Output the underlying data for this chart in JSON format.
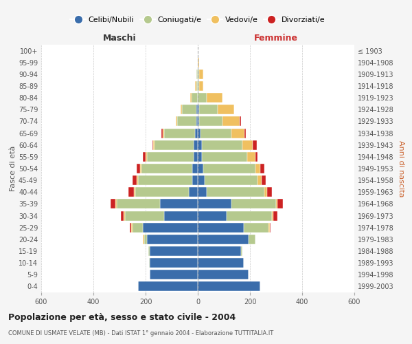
{
  "age_groups": [
    "0-4",
    "5-9",
    "10-14",
    "15-19",
    "20-24",
    "25-29",
    "30-34",
    "35-39",
    "40-44",
    "45-49",
    "50-54",
    "55-59",
    "60-64",
    "65-69",
    "70-74",
    "75-79",
    "80-84",
    "85-89",
    "90-94",
    "95-99",
    "100+"
  ],
  "birth_years": [
    "1999-2003",
    "1994-1998",
    "1989-1993",
    "1984-1988",
    "1979-1983",
    "1974-1978",
    "1969-1973",
    "1964-1968",
    "1959-1963",
    "1954-1958",
    "1949-1953",
    "1944-1948",
    "1939-1943",
    "1934-1938",
    "1929-1933",
    "1924-1928",
    "1919-1923",
    "1914-1918",
    "1909-1913",
    "1904-1908",
    "≤ 1903"
  ],
  "males": {
    "celibi": [
      230,
      185,
      185,
      185,
      195,
      210,
      130,
      145,
      35,
      20,
      20,
      15,
      15,
      10,
      5,
      5,
      0,
      0,
      0,
      0,
      0
    ],
    "coniugati": [
      0,
      0,
      2,
      5,
      10,
      40,
      150,
      165,
      205,
      210,
      195,
      180,
      150,
      120,
      75,
      55,
      25,
      5,
      5,
      0,
      0
    ],
    "vedovi": [
      0,
      0,
      0,
      0,
      5,
      5,
      5,
      5,
      5,
      5,
      5,
      5,
      5,
      5,
      5,
      5,
      5,
      5,
      0,
      0,
      0
    ],
    "divorziati": [
      0,
      0,
      0,
      0,
      0,
      5,
      10,
      20,
      20,
      15,
      15,
      10,
      5,
      5,
      0,
      0,
      0,
      0,
      0,
      0,
      0
    ]
  },
  "females": {
    "nubili": [
      240,
      195,
      175,
      165,
      195,
      175,
      110,
      130,
      35,
      25,
      20,
      15,
      15,
      10,
      5,
      5,
      0,
      0,
      0,
      0,
      0
    ],
    "coniugate": [
      0,
      0,
      2,
      5,
      25,
      95,
      175,
      170,
      220,
      205,
      200,
      175,
      155,
      120,
      90,
      70,
      35,
      5,
      5,
      0,
      0
    ],
    "vedove": [
      0,
      0,
      0,
      0,
      0,
      5,
      5,
      5,
      10,
      15,
      20,
      30,
      40,
      50,
      65,
      65,
      60,
      15,
      15,
      5,
      0
    ],
    "divorziate": [
      0,
      0,
      0,
      0,
      0,
      5,
      15,
      20,
      20,
      15,
      15,
      10,
      15,
      5,
      5,
      0,
      0,
      0,
      0,
      0,
      0
    ]
  },
  "colors": {
    "celibi_nubili": "#3a6dab",
    "coniugati_e": "#b5c98e",
    "vedovi_e": "#f0c060",
    "divorziati_e": "#cc2222"
  },
  "xlim": 600,
  "title": "Popolazione per età, sesso e stato civile - 2004",
  "subtitle": "COMUNE DI USMATE VELATE (MB) - Dati ISTAT 1° gennaio 2004 - Elaborazione TUTTITALIA.IT",
  "ylabel": "Fasce di età",
  "ylabel_right": "Anni di nascita",
  "maschi_label": "Maschi",
  "femmine_label": "Femmine",
  "legend_labels": [
    "Celibi/Nubili",
    "Coniugati/e",
    "Vedovi/e",
    "Divorziati/e"
  ],
  "bg_color": "#f5f5f5",
  "plot_bg_color": "#ffffff",
  "grid_color": "#cccccc"
}
